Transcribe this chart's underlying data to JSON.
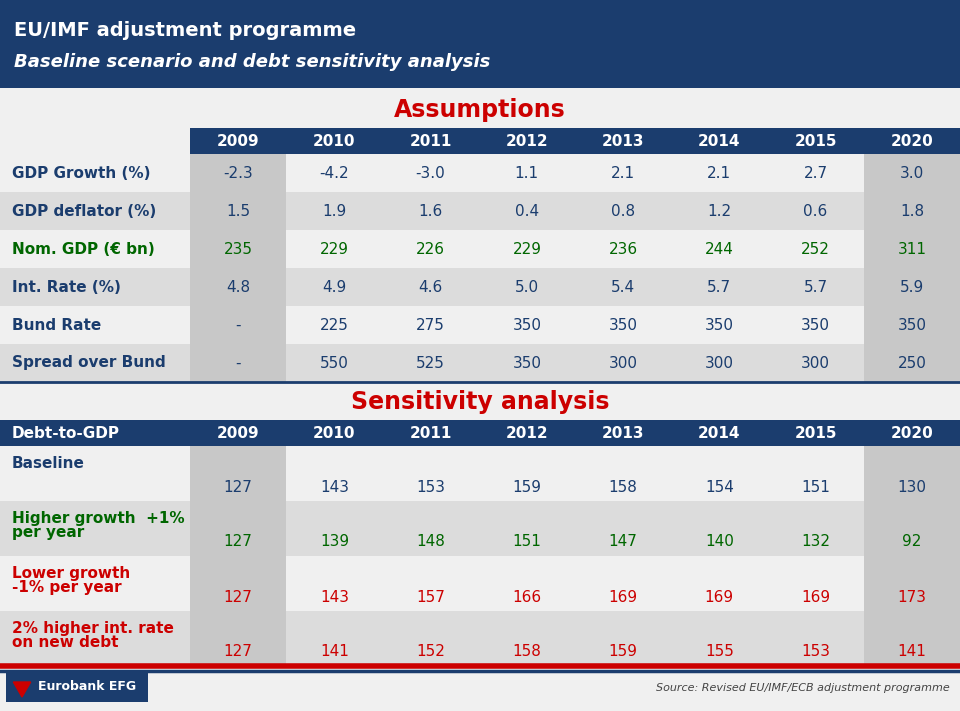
{
  "title_line1": "EU/IMF adjustment programme",
  "title_line2": "Baseline scenario and debt sensitivity analysis",
  "header_bg": "#1b3d6e",
  "title_text_color": "#ffffff",
  "assumptions_title": "Assumptions",
  "sensitivity_title": "Sensitivity analysis",
  "section_title_color": "#cc0000",
  "years": [
    "2009",
    "2010",
    "2011",
    "2012",
    "2013",
    "2014",
    "2015",
    "2020"
  ],
  "assumptions_header_bg": "#1b3d6e",
  "assumptions_header_text": "#ffffff",
  "row_bg_even": "#f0f0f0",
  "row_bg_odd": "#dcdcdc",
  "col_shade_bg": "#c8c8c8",
  "assumptions_rows": [
    {
      "label": "GDP Growth (%)",
      "label_color": "#1b3d6e",
      "values": [
        "-2.3",
        "-4.2",
        "-3.0",
        "1.1",
        "2.1",
        "2.1",
        "2.7",
        "3.0"
      ],
      "value_color": "#1b3d6e"
    },
    {
      "label": "GDP deflator (%)",
      "label_color": "#1b3d6e",
      "values": [
        "1.5",
        "1.9",
        "1.6",
        "0.4",
        "0.8",
        "1.2",
        "0.6",
        "1.8"
      ],
      "value_color": "#1b3d6e"
    },
    {
      "label": "Nom. GDP (€ bn)",
      "label_color": "#006600",
      "values": [
        "235",
        "229",
        "226",
        "229",
        "236",
        "244",
        "252",
        "311"
      ],
      "value_color": "#006600"
    },
    {
      "label": "Int. Rate (%)",
      "label_color": "#1b3d6e",
      "values": [
        "4.8",
        "4.9",
        "4.6",
        "5.0",
        "5.4",
        "5.7",
        "5.7",
        "5.9"
      ],
      "value_color": "#1b3d6e"
    },
    {
      "label": "Bund Rate",
      "label_color": "#1b3d6e",
      "values": [
        "-",
        "225",
        "275",
        "350",
        "350",
        "350",
        "350",
        "350"
      ],
      "value_color": "#1b3d6e"
    },
    {
      "label": "Spread over Bund",
      "label_color": "#1b3d6e",
      "values": [
        "-",
        "550",
        "525",
        "350",
        "300",
        "300",
        "300",
        "250"
      ],
      "value_color": "#1b3d6e"
    }
  ],
  "sensitivity_rows": [
    {
      "label": "Baseline",
      "label_lines": [
        "Baseline"
      ],
      "label_color": "#1b3d6e",
      "values": [
        "127",
        "143",
        "153",
        "159",
        "158",
        "154",
        "151",
        "130"
      ],
      "value_color": "#1b3d6e"
    },
    {
      "label": "Higher growth  +1%\nper year",
      "label_lines": [
        "Higher growth  +1%",
        "per year"
      ],
      "label_color": "#006600",
      "values": [
        "127",
        "139",
        "148",
        "151",
        "147",
        "140",
        "132",
        "92"
      ],
      "value_color": "#006600"
    },
    {
      "label": "Lower growth\n-1% per year",
      "label_lines": [
        "Lower growth",
        "-1% per year"
      ],
      "label_color": "#cc0000",
      "values": [
        "127",
        "143",
        "157",
        "166",
        "169",
        "169",
        "169",
        "173"
      ],
      "value_color": "#cc0000"
    },
    {
      "label": "2% higher int. rate\non new debt",
      "label_lines": [
        "2% higher int. rate",
        "on new debt"
      ],
      "label_color": "#cc0000",
      "values": [
        "127",
        "141",
        "152",
        "158",
        "159",
        "155",
        "153",
        "141"
      ],
      "value_color": "#cc0000"
    }
  ],
  "source_text": "Source: Revised EU/IMF/ECB adjustment programme",
  "bottom_bar_red": "#cc0000",
  "bottom_bar_blue": "#1b3d6e",
  "sensitivity_header_label": "Debt-to-GDP"
}
